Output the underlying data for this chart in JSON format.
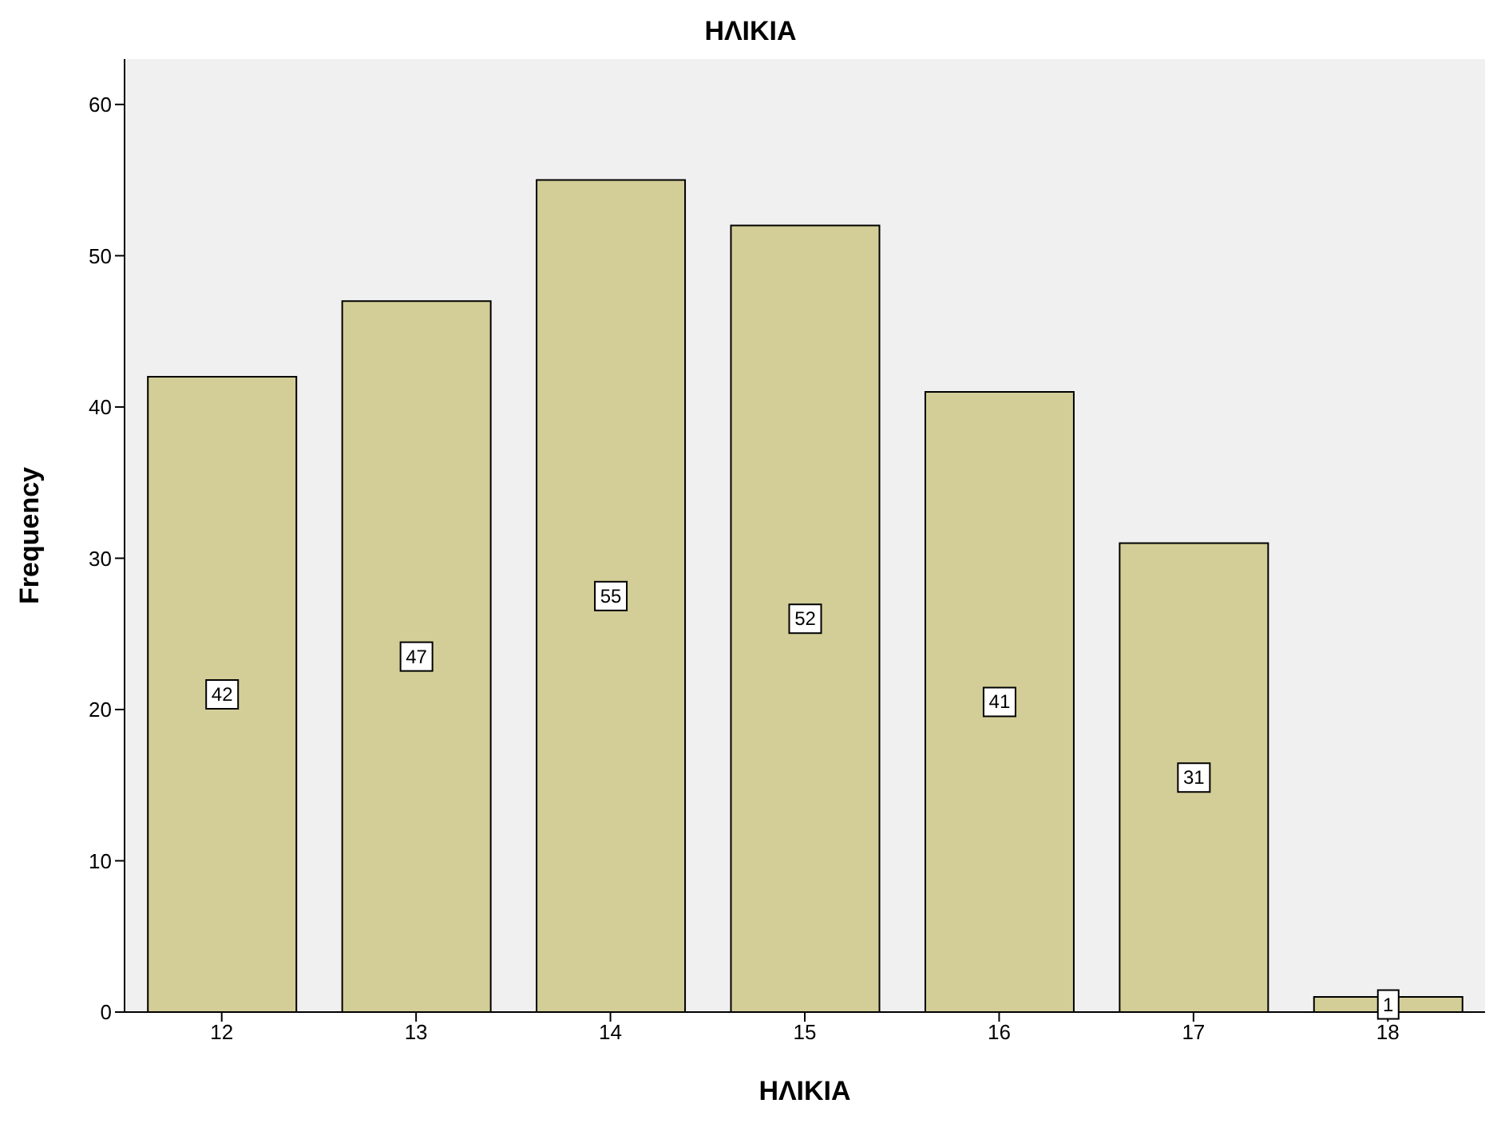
{
  "chart_data": {
    "type": "bar",
    "title": "ΗΛΙΚΙΑ",
    "xlabel": "ΗΛΙΚΙΑ",
    "ylabel": "Frequency",
    "categories": [
      "12",
      "13",
      "14",
      "15",
      "16",
      "17",
      "18"
    ],
    "values": [
      42,
      47,
      55,
      52,
      41,
      31,
      1
    ],
    "color": "#d3ce97",
    "ylim": [
      0,
      63
    ],
    "yticks": [
      0,
      10,
      20,
      30,
      40,
      50,
      60
    ],
    "data_labels": true,
    "grid": false
  }
}
